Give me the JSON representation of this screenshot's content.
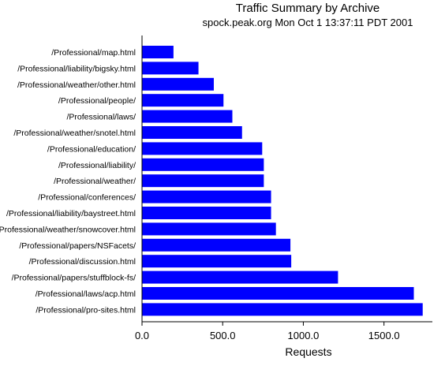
{
  "chart_data": {
    "type": "bar",
    "orientation": "horizontal",
    "title": "Traffic Summary by Archive",
    "subtitle": "spock.peak.org Mon Oct  1 13:37:11 PDT 2001",
    "xlabel": "Requests",
    "ylabel": "",
    "xlim": [
      0,
      1800
    ],
    "xticks": [
      0,
      500,
      1000,
      1500
    ],
    "xtick_labels": [
      "0.0",
      "500.0",
      "1000.0",
      "1500.0"
    ],
    "grid": false,
    "legend": "none",
    "bar_color": "#0000ff",
    "categories": [
      "/Professional/map.html",
      "/Professional/liability/bigsky.html",
      "/Professional/weather/other.html",
      "/Professional/people/",
      "/Professional/laws/",
      "/Professional/weather/snotel.html",
      "/Professional/education/",
      "/Professional/liability/",
      "/Professional/weather/",
      "/Professional/conferences/",
      "/Professional/liability/baystreet.html",
      "/Professional/weather/snowcover.html",
      "/Professional/papers/NSFacets/",
      "/Professional/discussion.html",
      "/Professional/papers/stuffblock-fs/",
      "/Professional/laws/acp.html",
      "/Professional/pro-sites.html"
    ],
    "values": [
      195,
      350,
      445,
      505,
      560,
      620,
      745,
      755,
      755,
      800,
      800,
      830,
      920,
      925,
      1215,
      1685,
      1740
    ]
  }
}
